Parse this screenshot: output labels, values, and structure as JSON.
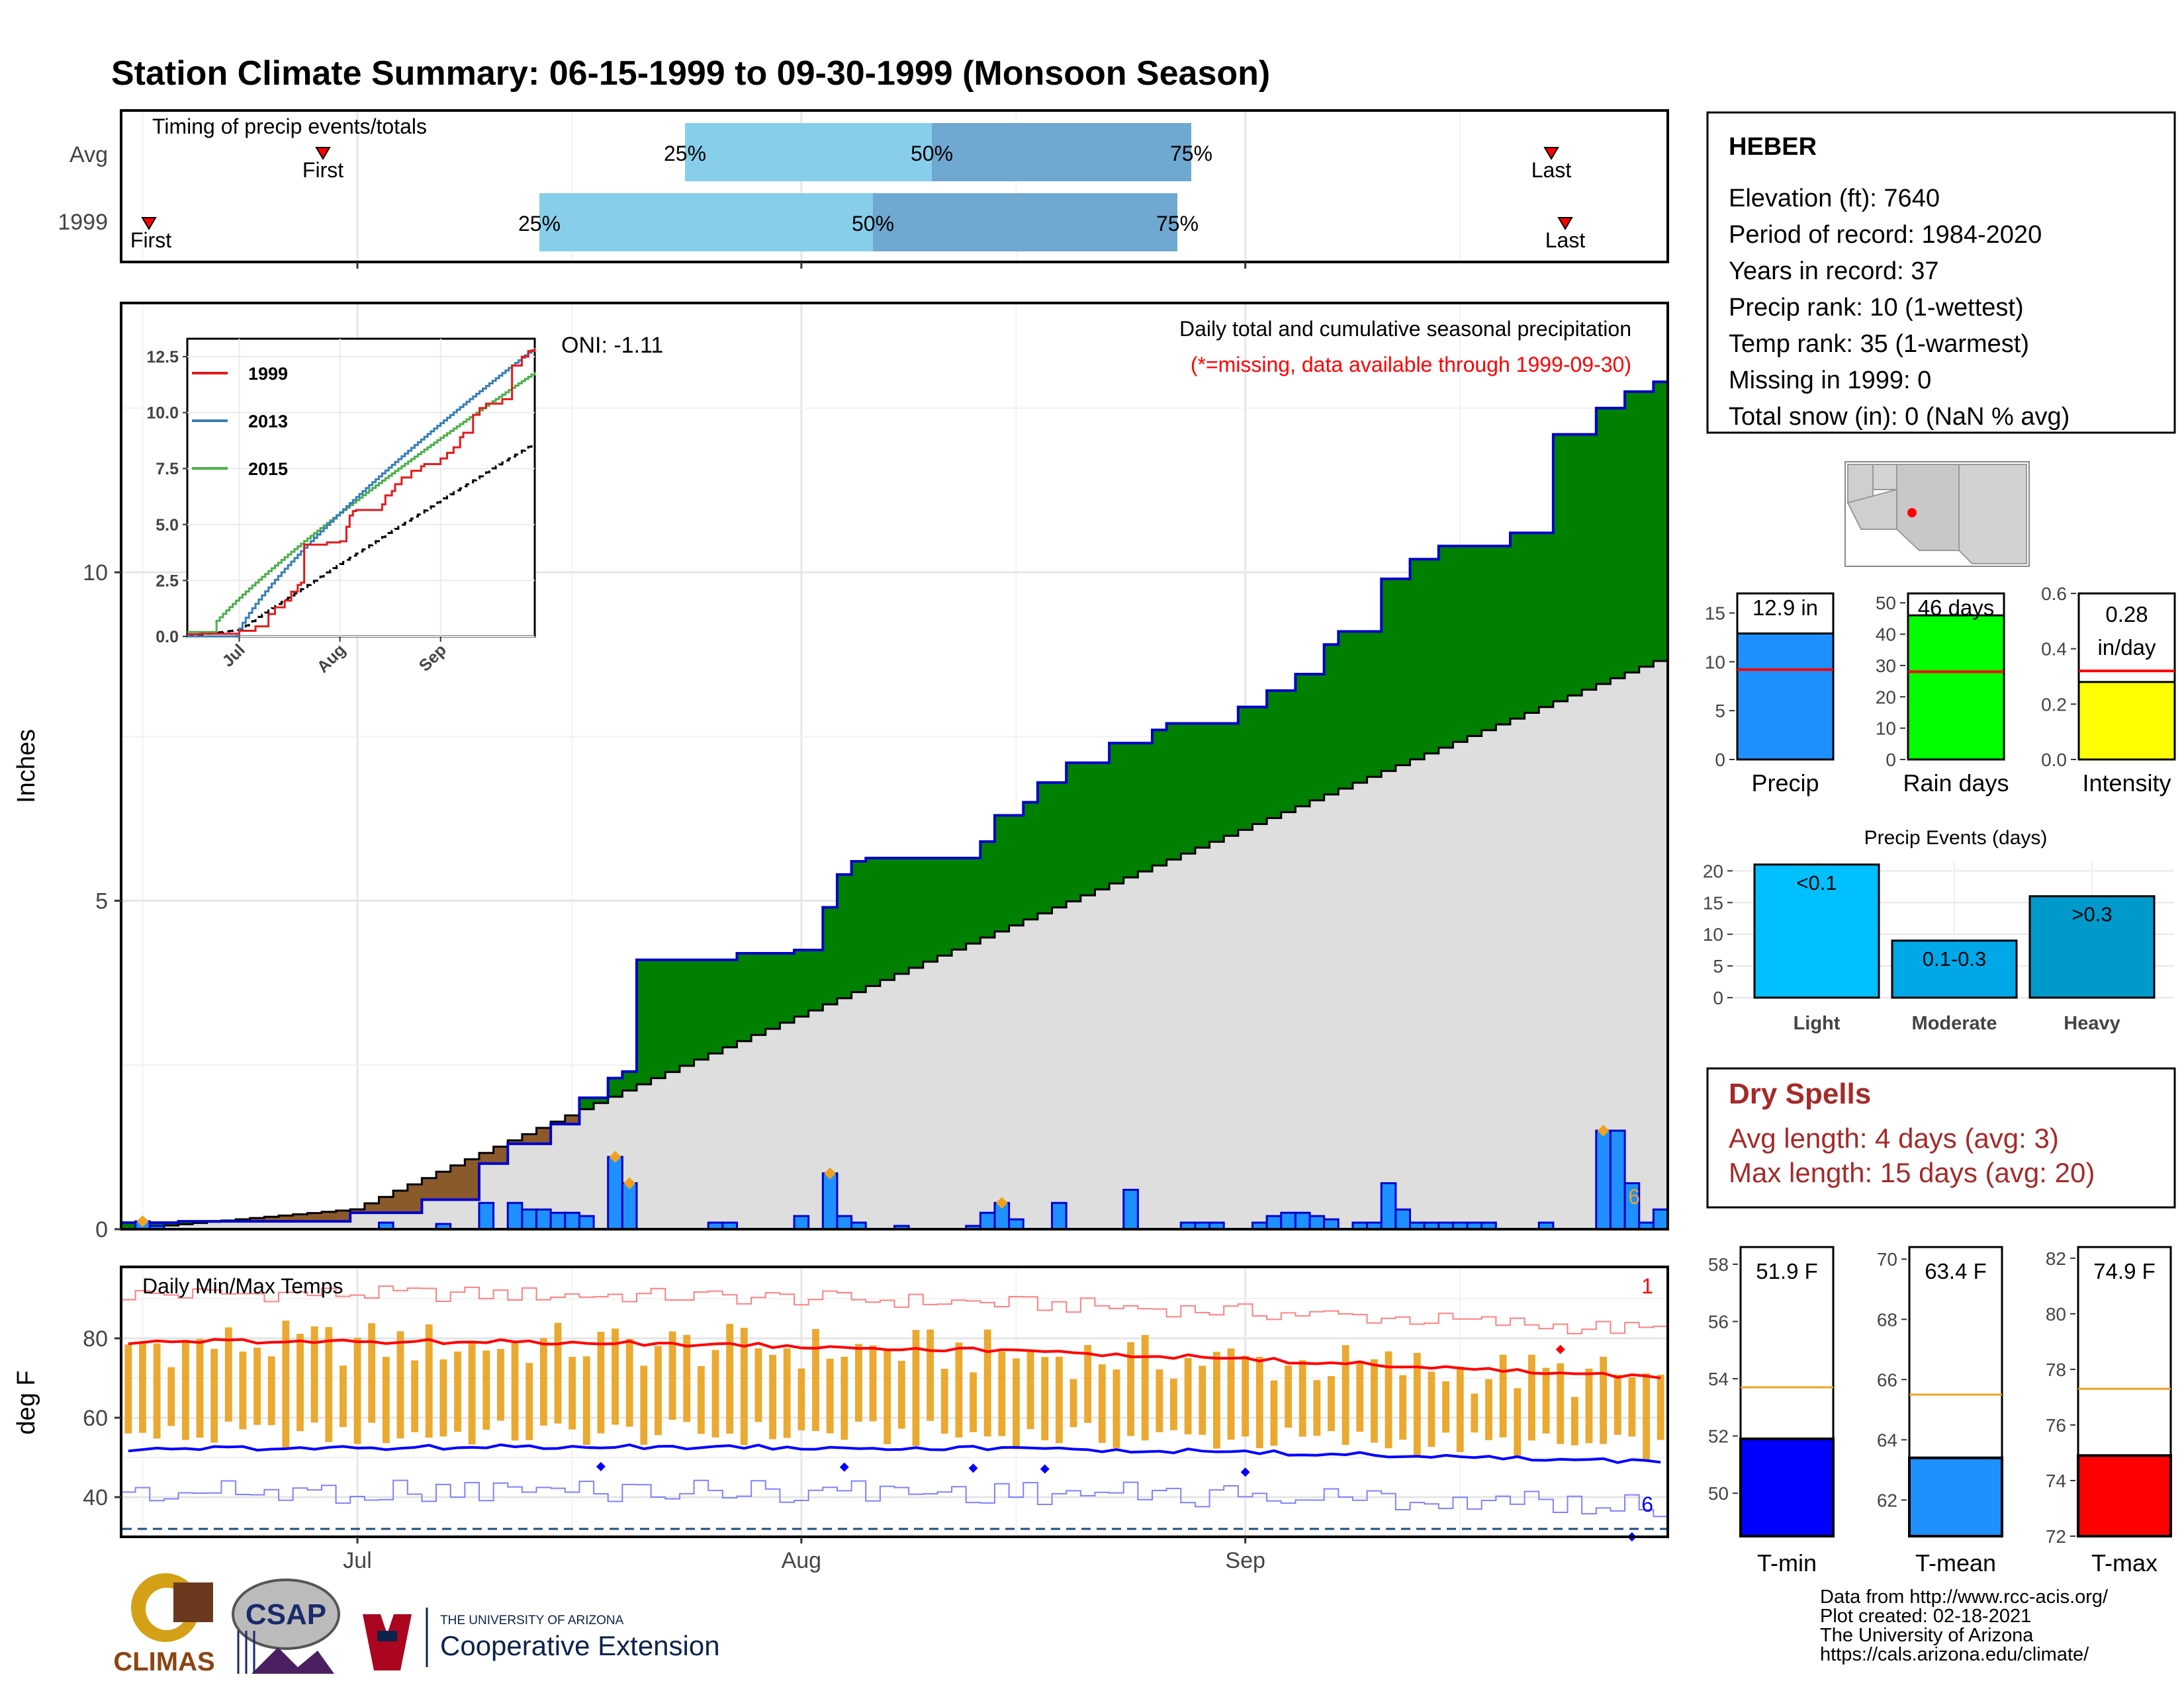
{
  "title": "Station Climate Summary: 06-15-1999 to 09-30-1999 (Monsoon Season)",
  "colors": {
    "title": "#ff0000",
    "dry_spells": "#a52a2a",
    "observed_fill": "#008000",
    "average_fill": "#dedede",
    "obs_line": "#0000cd",
    "daily_bar": "#1e90ff",
    "q1": "#87ceeb",
    "q2": "#6fa8d0",
    "tmax_bar": "#e8a01a",
    "tmax_line": "#ff0000",
    "tmin_line": "#0000ff"
  },
  "timing": {
    "label": "Timing of precip events/totals",
    "rows": [
      {
        "label": "Avg",
        "first": "First",
        "last": "Last",
        "p25": "25%",
        "p50": "50%",
        "p75": "75%"
      },
      {
        "label": "1999",
        "first": "First",
        "last": "Last",
        "p25": "25%",
        "p50": "50%",
        "p75": "75%"
      }
    ]
  },
  "precip_panel": {
    "ylabel": "Inches",
    "title": "Daily total and cumulative seasonal precipitation",
    "subtitle": "(*=missing, data available through 1999-09-30)",
    "oni": "ONI: -1.11",
    "corner_count": "6",
    "yticks": [
      "0",
      "5",
      "10"
    ]
  },
  "inset": {
    "series": [
      "1999",
      "2013",
      "2015"
    ],
    "yticks": [
      "0.0",
      "2.5",
      "5.0",
      "7.5",
      "10.0",
      "12.5"
    ],
    "xticks": [
      "Jul",
      "Aug",
      "Sep"
    ]
  },
  "temp_panel": {
    "ylabel": "deg F",
    "label": "Daily Min/Max Temps",
    "corner_top": "1",
    "corner_bottom": "6",
    "yticks": [
      "40",
      "60",
      "80"
    ]
  },
  "xticks": [
    "Jul",
    "Aug",
    "Sep"
  ],
  "station": {
    "name": "HEBER",
    "lines": [
      "Elevation (ft): 7640",
      "Period of record: 1984-2020",
      "Years in record: 37",
      "Precip rank: 10 (1-wettest)",
      "Temp rank: 35 (1-warmest)",
      "Missing in 1999: 0",
      "Total snow (in): 0 (NaN % avg)"
    ]
  },
  "summary_bars": [
    {
      "label": "Precip",
      "value_text": "12.9 in",
      "value": 12.9,
      "avg": 9.2,
      "ymax": 17,
      "ticks": [
        "0",
        "5",
        "10",
        "15"
      ],
      "tickvals": [
        0,
        5,
        10,
        15
      ],
      "color": "#1e90ff"
    },
    {
      "label": "Rain days",
      "value_text": "46 days",
      "value": 46,
      "avg": 28,
      "ymax": 53,
      "ticks": [
        "0",
        "10",
        "20",
        "30",
        "40",
        "50"
      ],
      "tickvals": [
        0,
        10,
        20,
        30,
        40,
        50
      ],
      "color": "#00ff00"
    },
    {
      "label": "Intensity",
      "value_text": "0.28 in/day",
      "value": 0.28,
      "avg": 0.32,
      "ymax": 0.6,
      "ticks": [
        "0.0",
        "0.2",
        "0.4",
        "0.6"
      ],
      "tickvals": [
        0,
        0.2,
        0.4,
        0.6
      ],
      "color": "#ffff00"
    }
  ],
  "precip_events": {
    "title": "Precip Events (days)",
    "yticks": [
      "0",
      "5",
      "10",
      "15",
      "20"
    ],
    "bars": [
      {
        "label": "Light",
        "value": 21,
        "text": "<0.1",
        "color": "#00bfff"
      },
      {
        "label": "Moderate",
        "value": 9,
        "text": "0.1-0.3",
        "color": "#00a8e8"
      },
      {
        "label": "Heavy",
        "value": 16,
        "text": ">0.3",
        "color": "#0099cc"
      }
    ]
  },
  "dry_spells": {
    "title": "Dry Spells",
    "avg_length": "Avg length: 4 days (avg: 3)",
    "max_length": "Max length: 15 days (avg: 20)"
  },
  "temp_bars": [
    {
      "label": "T-min",
      "value_text": "51.9 F",
      "value": 51.9,
      "avg": 53.7,
      "ymin": 48.5,
      "ymax": 58.6,
      "ticks": [
        "50",
        "52",
        "54",
        "56",
        "58"
      ],
      "tickvals": [
        50,
        52,
        54,
        56,
        58
      ],
      "color": "#0000ff"
    },
    {
      "label": "T-mean",
      "value_text": "63.4 F",
      "value": 63.4,
      "avg": 65.5,
      "ymin": 60.8,
      "ymax": 70.4,
      "ticks": [
        "62",
        "64",
        "66",
        "68",
        "70"
      ],
      "tickvals": [
        62,
        64,
        66,
        68,
        70
      ],
      "color": "#1e90ff"
    },
    {
      "label": "T-max",
      "value_text": "74.9 F",
      "value": 74.9,
      "avg": 77.3,
      "ymin": 72,
      "ymax": 82.4,
      "ticks": [
        "72",
        "74",
        "76",
        "78",
        "80",
        "82"
      ],
      "tickvals": [
        72,
        74,
        76,
        78,
        80,
        82
      ],
      "color": "#ff0000"
    }
  ],
  "footer": {
    "lines": [
      "Data from http://www.rcc-acis.org/",
      "Plot created: 02-18-2021",
      "The University of Arizona",
      "https://cals.arizona.edu/climate/"
    ]
  },
  "logos": {
    "climas": "CLIMAS",
    "csap": "CSAP",
    "ua_small": "THE UNIVERSITY OF ARIZONA",
    "ua_big": "Cooperative Extension"
  },
  "chart_data": [
    {
      "type": "area",
      "title": "Daily total and cumulative seasonal precipitation",
      "ylabel": "Inches",
      "x_range": [
        "1999-06-15",
        "1999-09-30"
      ],
      "ylim": [
        0,
        14.1
      ],
      "observed_cumulative_steps": [
        [
          "06-15",
          0.1
        ],
        [
          "06-19",
          0.12
        ],
        [
          "07-01",
          0.25
        ],
        [
          "07-06",
          0.45
        ],
        [
          "07-10",
          1.0
        ],
        [
          "07-12",
          1.3
        ],
        [
          "07-15",
          1.6
        ],
        [
          "07-17",
          2.0
        ],
        [
          "07-19",
          2.3
        ],
        [
          "07-20",
          2.4
        ],
        [
          "07-21",
          4.1
        ],
        [
          "07-28",
          4.2
        ],
        [
          "08-01",
          4.25
        ],
        [
          "08-03",
          4.9
        ],
        [
          "08-04",
          5.4
        ],
        [
          "08-05",
          5.6
        ],
        [
          "08-06",
          5.65
        ],
        [
          "08-14",
          5.9
        ],
        [
          "08-15",
          6.3
        ],
        [
          "08-17",
          6.5
        ],
        [
          "08-18",
          6.8
        ],
        [
          "08-20",
          7.1
        ],
        [
          "08-23",
          7.4
        ],
        [
          "08-26",
          7.6
        ],
        [
          "08-27",
          7.7
        ],
        [
          "09-01",
          7.95
        ],
        [
          "09-03",
          8.2
        ],
        [
          "09-05",
          8.45
        ],
        [
          "09-07",
          8.9
        ],
        [
          "09-08",
          9.1
        ],
        [
          "09-11",
          9.9
        ],
        [
          "09-13",
          10.2
        ],
        [
          "09-15",
          10.4
        ],
        [
          "09-20",
          10.6
        ],
        [
          "09-23",
          12.1
        ],
        [
          "09-26",
          12.5
        ],
        [
          "09-28",
          12.75
        ],
        [
          "09-30",
          12.9
        ]
      ],
      "average_cumulative_end": 8.65,
      "daily_precip": [
        [
          "06-16",
          0.12
        ],
        [
          "06-17",
          0.05
        ],
        [
          "07-03",
          0.1
        ],
        [
          "07-07",
          0.08
        ],
        [
          "07-10",
          0.4
        ],
        [
          "07-12",
          0.4
        ],
        [
          "07-13",
          0.3
        ],
        [
          "07-14",
          0.3
        ],
        [
          "07-15",
          0.25
        ],
        [
          "07-16",
          0.25
        ],
        [
          "07-17",
          0.2
        ],
        [
          "07-19",
          1.1
        ],
        [
          "07-20",
          0.7
        ],
        [
          "07-26",
          0.1
        ],
        [
          "07-27",
          0.1
        ],
        [
          "08-01",
          0.2
        ],
        [
          "08-03",
          0.85
        ],
        [
          "08-04",
          0.2
        ],
        [
          "08-05",
          0.1
        ],
        [
          "08-08",
          0.05
        ],
        [
          "08-13",
          0.05
        ],
        [
          "08-14",
          0.25
        ],
        [
          "08-15",
          0.4
        ],
        [
          "08-16",
          0.15
        ],
        [
          "08-19",
          0.4
        ],
        [
          "08-24",
          0.6
        ],
        [
          "08-28",
          0.1
        ],
        [
          "08-29",
          0.1
        ],
        [
          "08-30",
          0.1
        ],
        [
          "09-02",
          0.1
        ],
        [
          "09-03",
          0.2
        ],
        [
          "09-04",
          0.25
        ],
        [
          "09-05",
          0.25
        ],
        [
          "09-06",
          0.2
        ],
        [
          "09-07",
          0.15
        ],
        [
          "09-09",
          0.1
        ],
        [
          "09-10",
          0.1
        ],
        [
          "09-11",
          0.7
        ],
        [
          "09-12",
          0.3
        ],
        [
          "09-13",
          0.1
        ],
        [
          "09-14",
          0.1
        ],
        [
          "09-15",
          0.1
        ],
        [
          "09-16",
          0.1
        ],
        [
          "09-17",
          0.1
        ],
        [
          "09-18",
          0.1
        ],
        [
          "09-22",
          0.1
        ],
        [
          "09-26",
          1.5
        ],
        [
          "09-27",
          1.5
        ],
        [
          "09-28",
          0.7
        ],
        [
          "09-29",
          0.1
        ],
        [
          "09-30",
          0.3
        ]
      ]
    },
    {
      "type": "line",
      "title": "",
      "ylim": [
        0,
        13
      ],
      "series": [
        {
          "name": "1999",
          "end_value": 12.9
        },
        {
          "name": "2013",
          "end_value": 12.9
        },
        {
          "name": "2015",
          "end_value": 11.8
        }
      ],
      "average_end_value": 8.65
    },
    {
      "type": "bar",
      "title": "Daily Min/Max Temps",
      "ylabel": "deg F",
      "ylim": [
        30,
        98
      ],
      "avg_tmax_start": 79,
      "avg_tmax_end": 70,
      "avg_tmin_start": 52,
      "avg_tmin_end": 48
    },
    {
      "type": "bar",
      "title": "Precip Events (days)",
      "categories": [
        "Light",
        "Moderate",
        "Heavy"
      ],
      "values": [
        21,
        9,
        16
      ],
      "ylim": [
        0,
        21.5
      ]
    }
  ]
}
